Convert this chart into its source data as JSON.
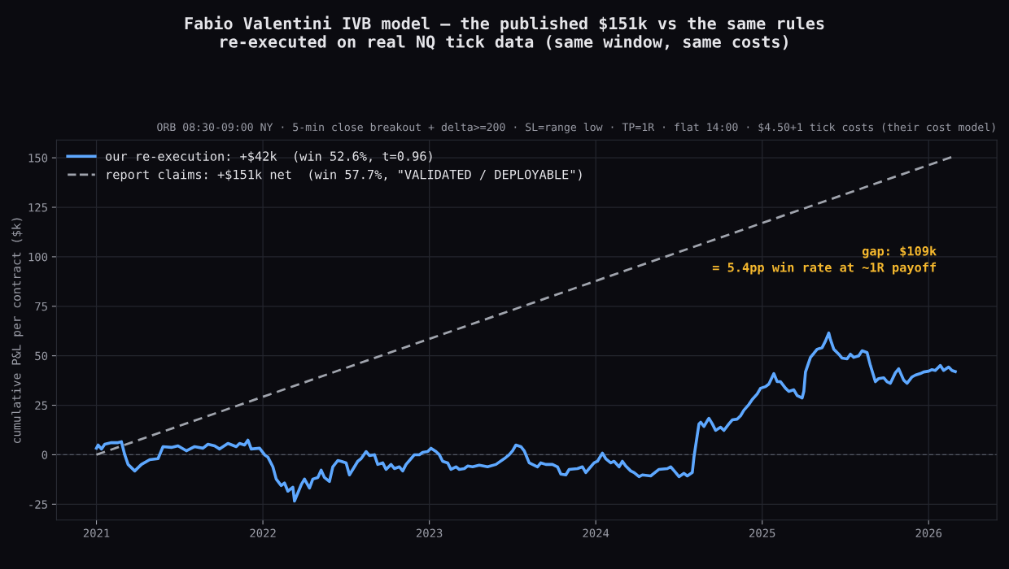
{
  "chart_data": {
    "type": "line",
    "title": "Fabio Valentini IVB model — the published $151k vs the same rules\nre-executed on real NQ tick data (same window, same costs)",
    "subtitle": "ORB 08:30-09:00 NY · 5-min close breakout + delta>=200 · SL=range low · TP=1R · flat 14:00 · $4.50+1 tick costs (their cost model)",
    "ylabel": "cumulative P&L per contract ($k)",
    "annotations": [
      "gap: $109k",
      "= 5.4pp win rate at ~1R payoff"
    ],
    "xlim": [
      2020.76,
      2026.41
    ],
    "xticks": [
      2021,
      2022,
      2023,
      2024,
      2025,
      2026
    ],
    "ylim": [
      -33,
      159
    ],
    "yticks": [
      -25,
      0,
      25,
      50,
      75,
      100,
      125,
      150
    ],
    "grid": true,
    "legend": "top left",
    "ref_lines": [
      {
        "axis": "y",
        "value": 0,
        "label": null,
        "color": "#555a66",
        "line_style": "dashed"
      }
    ],
    "series": [
      {
        "name": "our re-execution: +$42k  (win 52.6%, t=0.96)",
        "color": "#5ea8ff",
        "line_style": "solid",
        "x": [
          2021.0,
          2021.01,
          2021.03,
          2021.05,
          2021.09,
          2021.13,
          2021.15,
          2021.17,
          2021.19,
          2021.23,
          2021.27,
          2021.32,
          2021.37,
          2021.4,
          2021.45,
          2021.49,
          2021.54,
          2021.59,
          2021.64,
          2021.67,
          2021.71,
          2021.74,
          2021.79,
          2021.84,
          2021.86,
          2021.89,
          2021.91,
          2021.93,
          2021.98,
          2022.01,
          2022.03,
          2022.06,
          2022.08,
          2022.11,
          2022.13,
          2022.15,
          2022.18,
          2022.19,
          2022.23,
          2022.25,
          2022.28,
          2022.3,
          2022.33,
          2022.35,
          2022.37,
          2022.4,
          2022.42,
          2022.45,
          2022.47,
          2022.5,
          2022.52,
          2022.55,
          2022.57,
          2022.59,
          2022.62,
          2022.64,
          2022.67,
          2022.69,
          2022.72,
          2022.74,
          2022.77,
          2022.79,
          2022.82,
          2022.84,
          2022.86,
          2022.89,
          2022.91,
          2022.94,
          2022.96,
          2022.99,
          2023.01,
          2023.04,
          2023.06,
          2023.08,
          2023.11,
          2023.13,
          2023.16,
          2023.18,
          2023.21,
          2023.23,
          2023.26,
          2023.3,
          2023.35,
          2023.4,
          2023.45,
          2023.48,
          2023.5,
          2023.52,
          2023.55,
          2023.57,
          2023.6,
          2023.65,
          2023.67,
          2023.7,
          2023.74,
          2023.77,
          2023.79,
          2023.82,
          2023.84,
          2023.89,
          2023.92,
          2023.94,
          2023.96,
          2023.99,
          2024.01,
          2024.04,
          2024.06,
          2024.09,
          2024.11,
          2024.14,
          2024.16,
          2024.18,
          2024.21,
          2024.23,
          2024.26,
          2024.28,
          2024.33,
          2024.38,
          2024.43,
          2024.45,
          2024.48,
          2024.5,
          2024.53,
          2024.55,
          2024.58,
          2024.59,
          2024.62,
          2024.63,
          2024.65,
          2024.67,
          2024.68,
          2024.7,
          2024.72,
          2024.75,
          2024.77,
          2024.8,
          2024.82,
          2024.85,
          2024.87,
          2024.89,
          2024.92,
          2024.94,
          2024.97,
          2024.99,
          2025.02,
          2025.04,
          2025.07,
          2025.09,
          2025.11,
          2025.14,
          2025.16,
          2025.19,
          2025.21,
          2025.24,
          2025.25,
          2025.26,
          2025.29,
          2025.31,
          2025.33,
          2025.36,
          2025.38,
          2025.4,
          2025.41,
          2025.43,
          2025.46,
          2025.48,
          2025.51,
          2025.53,
          2025.55,
          2025.58,
          2025.6,
          2025.63,
          2025.65,
          2025.68,
          2025.7,
          2025.73,
          2025.75,
          2025.77,
          2025.8,
          2025.82,
          2025.85,
          2025.87,
          2025.9,
          2025.92,
          2025.95,
          2025.97,
          2026.0,
          2026.02,
          2026.04,
          2026.07,
          2026.09,
          2026.12,
          2026.14,
          2026.16
        ],
        "values": [
          3.3,
          4.9,
          2.9,
          5.3,
          6.1,
          6.1,
          6.6,
          0,
          -4.9,
          -8.2,
          -4.9,
          -2.5,
          -2.0,
          4.1,
          3.7,
          4.5,
          2.0,
          4.1,
          3.3,
          5.3,
          4.5,
          2.9,
          5.7,
          4.1,
          5.7,
          4.9,
          7.4,
          2.9,
          3.3,
          0,
          -1.2,
          -6.1,
          -12.3,
          -15.6,
          -14.3,
          -18.4,
          -16.4,
          -23.4,
          -15.2,
          -12.3,
          -16.8,
          -12.3,
          -11.5,
          -7.8,
          -11.5,
          -13.5,
          -6.1,
          -2.9,
          -3.3,
          -4.1,
          -10.2,
          -6.1,
          -3.3,
          -2.0,
          1.6,
          -0.4,
          0,
          -4.9,
          -4.1,
          -7.4,
          -4.9,
          -7.0,
          -6.1,
          -8.2,
          -4.9,
          -2.0,
          0,
          0,
          1.2,
          1.6,
          3.3,
          1.6,
          0,
          -3.3,
          -4.1,
          -7.4,
          -6.1,
          -7.4,
          -7.0,
          -5.7,
          -6.1,
          -5.3,
          -6.1,
          -4.9,
          -2.0,
          0,
          2.0,
          4.9,
          4.1,
          2.0,
          -4.1,
          -6.1,
          -4.1,
          -4.9,
          -4.9,
          -6.1,
          -9.8,
          -10.2,
          -7.4,
          -7.0,
          -6.1,
          -9.0,
          -7.0,
          -4.1,
          -3.3,
          0.8,
          -2.0,
          -4.1,
          -3.3,
          -6.1,
          -3.3,
          -5.7,
          -8.2,
          -9.0,
          -11.1,
          -10.2,
          -10.7,
          -7.4,
          -7.0,
          -6.1,
          -9.0,
          -11.1,
          -9.4,
          -10.7,
          -9.0,
          -1.2,
          15.6,
          16.4,
          14.3,
          17.2,
          18.4,
          15.6,
          12.3,
          13.9,
          12.3,
          15.6,
          17.6,
          18.0,
          19.7,
          22.5,
          25.4,
          27.9,
          30.7,
          33.6,
          34.4,
          35.7,
          41.0,
          36.9,
          36.9,
          33.6,
          32.0,
          32.8,
          29.9,
          28.7,
          32.0,
          41.8,
          49.2,
          51.2,
          53.3,
          54.1,
          57.4,
          61.5,
          58.2,
          53.3,
          50.8,
          48.8,
          48.4,
          50.8,
          49.2,
          50.0,
          52.5,
          51.6,
          45.1,
          36.9,
          38.5,
          38.9,
          36.9,
          36.1,
          41.4,
          43.4,
          37.7,
          36.1,
          39.3,
          40.2,
          41.0,
          41.8,
          42.2,
          43.0,
          42.6,
          45.1,
          42.6,
          44.3,
          42.6,
          42.0
        ]
      },
      {
        "name": "report claims: +$151k net  (win 57.7%, \"VALIDATED / DEPLOYABLE\")",
        "color": "#a0a4ad",
        "line_style": "dashed",
        "x": [
          2021.0,
          2026.16
        ],
        "values": [
          0,
          151
        ]
      }
    ]
  }
}
